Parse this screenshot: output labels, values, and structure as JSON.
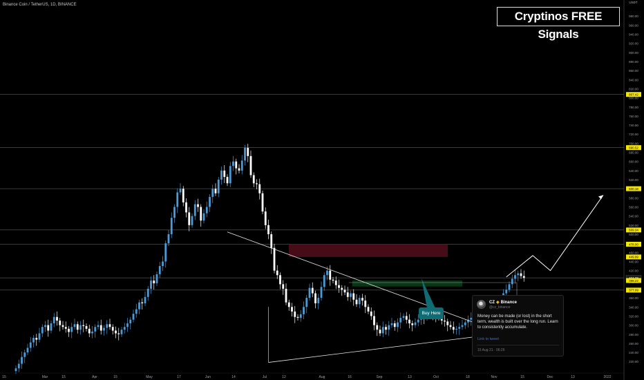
{
  "chart_data": {
    "type": "candlestick",
    "symbol_title": "Binance Coin / TetherUS, 1D, BINANCE",
    "currency_label": "USDT",
    "ylim": [
      202,
      1000
    ],
    "y_ticks": [
      220,
      240,
      260,
      280,
      300,
      320,
      340,
      360,
      380,
      400,
      420,
      440,
      460,
      480,
      500,
      520,
      540,
      560,
      580,
      600,
      620,
      640,
      660,
      680,
      700,
      720,
      740,
      760,
      780,
      800,
      820,
      840,
      860,
      880,
      900,
      920,
      940,
      960,
      980
    ],
    "x_ticks": [
      "15",
      "Mar",
      "15",
      "Apr",
      "15",
      "May",
      "17",
      "Jun",
      "14",
      "Jul",
      "12",
      "Aug",
      "16",
      "Sep",
      "13",
      "Oct",
      "18",
      "Nov",
      "15",
      "Dec",
      "13",
      "2022"
    ],
    "closes": [
      205,
      215,
      230,
      240,
      250,
      262,
      272,
      268,
      282,
      296,
      300,
      288,
      304,
      318,
      310,
      300,
      296,
      292,
      285,
      296,
      302,
      290,
      300,
      298,
      292,
      282,
      286,
      296,
      300,
      288,
      294,
      302,
      296,
      288,
      282,
      280,
      290,
      296,
      304,
      312,
      325,
      335,
      350,
      348,
      362,
      380,
      398,
      392,
      412,
      430,
      440,
      480,
      500,
      536,
      560,
      592,
      600,
      570,
      548,
      520,
      540,
      566,
      560,
      530,
      546,
      560,
      582,
      600,
      590,
      620,
      640,
      626,
      612,
      650,
      660,
      645,
      640,
      662,
      690,
      672,
      630,
      612,
      610,
      590,
      550,
      520,
      500,
      470,
      420,
      410,
      390,
      380,
      350,
      340,
      330,
      318,
      316,
      324,
      340,
      360,
      382,
      370,
      348,
      360,
      384,
      410,
      420,
      400,
      398,
      388,
      382,
      378,
      372,
      362,
      370,
      356,
      346,
      360,
      354,
      340,
      330,
      320,
      300,
      290,
      282,
      296,
      290,
      300,
      304,
      296,
      306,
      316,
      320,
      312,
      304,
      300,
      306,
      312,
      318,
      316,
      324,
      328,
      322,
      320,
      316,
      310,
      308,
      300,
      296,
      290,
      292,
      296,
      300,
      306,
      312,
      316,
      322,
      324,
      328,
      332,
      330,
      336,
      344,
      346,
      352,
      356,
      370,
      378,
      390,
      402,
      410,
      414,
      408,
      404
    ],
    "price_labels": {
      "level_1": "807.42",
      "level_2": "690.52",
      "level_3": "600.18",
      "level_4": "509.34",
      "level_5": "478.00",
      "level_6": "449.99",
      "current": "404.08",
      "countdown": "07:16:19",
      "level_7": "398.22",
      "level_8": "377.09"
    },
    "horizontal_levels": [
      807.42,
      690.52,
      600.18,
      509.34,
      478.0,
      404.08,
      377.09
    ],
    "resistance_zone": [
      450,
      478
    ],
    "support_zone": [
      385,
      398
    ],
    "triangle_upper_line": [
      [
        72,
        505
      ],
      [
        166,
        282
      ]
    ],
    "triangle_lower_line": [
      [
        86,
        218
      ],
      [
        166,
        282
      ]
    ],
    "projection_path": [
      [
        167,
        406
      ],
      [
        176,
        453
      ],
      [
        182,
        420
      ],
      [
        200,
        586
      ]
    ],
    "colors": {
      "up": "#4a9bd8",
      "down": "#ffffff",
      "resistance_zone": "#4a0d18",
      "support_zone": "#0a3a16",
      "label_highlight": "#f5e600"
    }
  },
  "overlay": {
    "brand_title": "Cryptinos FREE Signals",
    "buy_label": "Buy Here"
  },
  "tweet": {
    "author": "CZ",
    "author_badge": "Binance",
    "handle": "@cz_binance",
    "body": "Money can be made (or lost) in the short term, wealth is built over the long run. Learn to consistently accumulate.",
    "link_text": "Link to tweet",
    "timestamp": "15 Aug 21 · 06:26"
  }
}
